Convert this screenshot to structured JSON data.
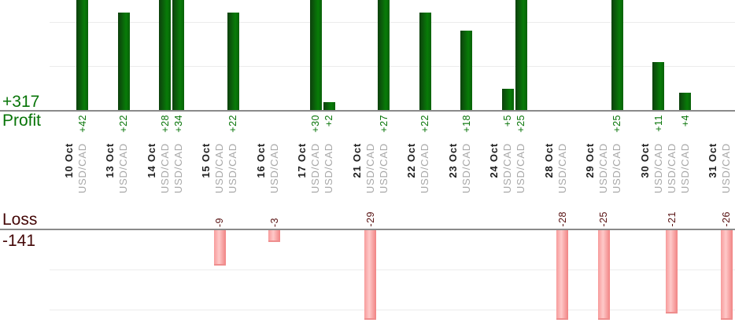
{
  "summary": {
    "profit_total": "+317",
    "profit_label": "Profit",
    "loss_label": "Loss",
    "loss_total": "-141"
  },
  "colors": {
    "profit_bar": "#087c08",
    "profit_bar_dark": "#0d400d",
    "profit_text": "#077407",
    "loss_bar": "#f9a4a4",
    "loss_bar_light": "#fec9c9",
    "loss_bar_border": "#ee8e8e",
    "loss_text": "#571111",
    "loss_text_dark": "#440707",
    "baseline": "#8a8a8a",
    "gridline": "#ececec",
    "date_text": "#1f1f1f",
    "symbol_text": "#a8a8a8"
  },
  "chart_data": {
    "type": "bar",
    "orientation": "vertical",
    "description": "Per-trade profit (green, top section) and loss (pink, bottom section) bars grouped by date",
    "top_section_label": "Profit",
    "bottom_section_label": "Loss",
    "gridline_step": 10,
    "gridlines_profit": [
      10,
      20
    ],
    "gridlines_loss": [
      -10,
      -20
    ],
    "groups": [
      {
        "date": "10 Oct",
        "trades": [
          {
            "symbol": "USD/CAD",
            "value": 42
          }
        ]
      },
      {
        "date": "13 Oct",
        "trades": [
          {
            "symbol": "USD/CAD",
            "value": 22
          }
        ]
      },
      {
        "date": "14 Oct",
        "trades": [
          {
            "symbol": "USD/CAD",
            "value": 28
          },
          {
            "symbol": "USD/CAD",
            "value": 34
          }
        ]
      },
      {
        "date": "15 Oct",
        "trades": [
          {
            "symbol": "USD/CAD",
            "value": -9
          },
          {
            "symbol": "USD/CAD",
            "value": 22
          }
        ]
      },
      {
        "date": "16 Oct",
        "trades": [
          {
            "symbol": "USD/CAD",
            "value": -3
          }
        ]
      },
      {
        "date": "17 Oct",
        "trades": [
          {
            "symbol": "USD/CAD",
            "value": 30
          },
          {
            "symbol": "USD/CAD",
            "value": 2
          }
        ]
      },
      {
        "date": "21 Oct",
        "trades": [
          {
            "symbol": "USD/CAD",
            "value": -29
          },
          {
            "symbol": "USD/CAD",
            "value": 27
          }
        ]
      },
      {
        "date": "22 Oct",
        "trades": [
          {
            "symbol": "USD/CAD",
            "value": 22
          }
        ]
      },
      {
        "date": "23 Oct",
        "trades": [
          {
            "symbol": "USD/CAD",
            "value": 18
          }
        ]
      },
      {
        "date": "24 Oct",
        "trades": [
          {
            "symbol": "USD/CAD",
            "value": 5
          },
          {
            "symbol": "USD/CAD",
            "value": 25
          }
        ]
      },
      {
        "date": "28 Oct",
        "trades": [
          {
            "symbol": "USD/CAD",
            "value": -28
          }
        ]
      },
      {
        "date": "29 Oct",
        "trades": [
          {
            "symbol": "USD/CAD",
            "value": -25
          },
          {
            "symbol": "USD/CAD",
            "value": 25
          }
        ]
      },
      {
        "date": "30 Oct",
        "trades": [
          {
            "symbol": "USD/CAD",
            "value": 11
          },
          {
            "symbol": "USD/CAD",
            "value": -21
          },
          {
            "symbol": "USD/CAD",
            "value": 4
          }
        ]
      },
      {
        "date": "31 Oct",
        "trades": [
          {
            "symbol": "USD/CAD",
            "value": -26
          }
        ]
      }
    ]
  }
}
